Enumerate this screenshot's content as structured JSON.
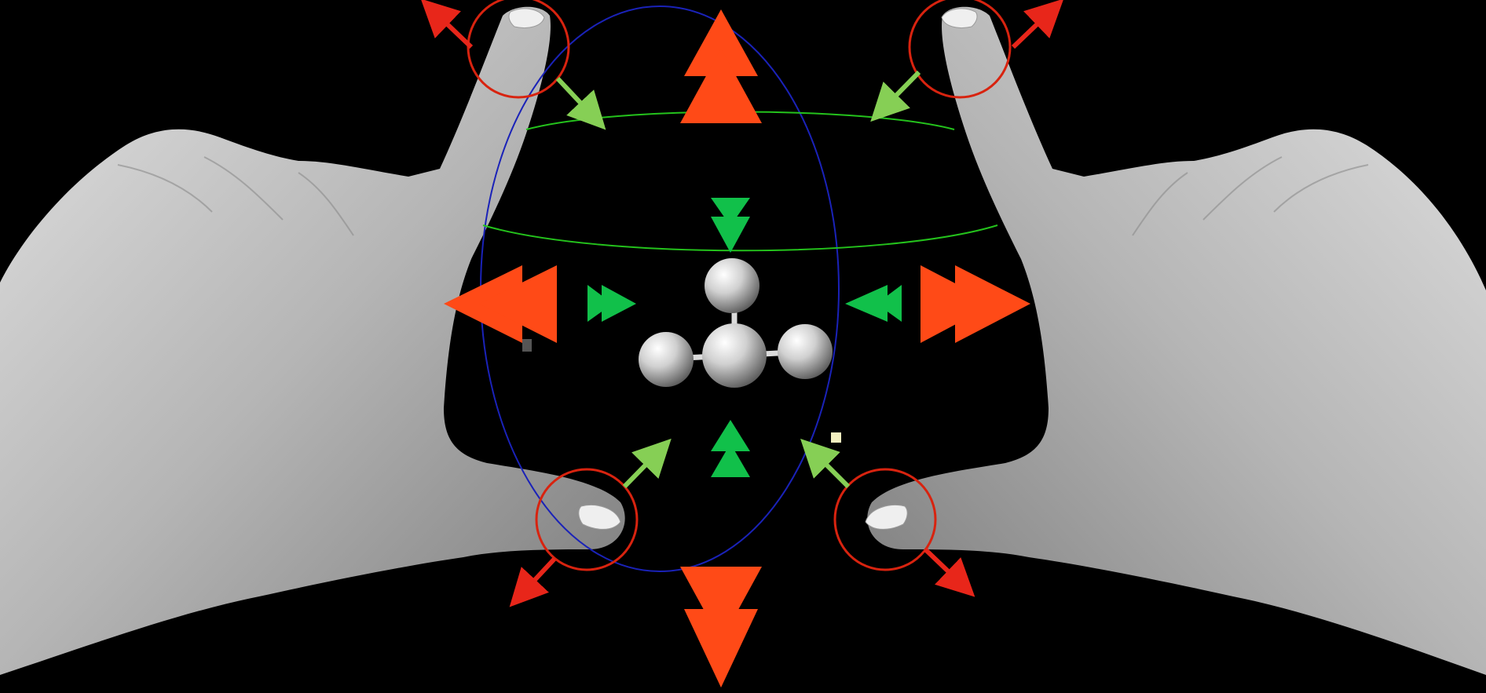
{
  "colors": {
    "background": "#000000",
    "skin_light": "#d6d6d6",
    "skin_mid": "#a9a9a9",
    "skin_dark": "#6a6a6a",
    "expand_arrow": "#ff4a17",
    "shrink_arrow": "#11c04a",
    "pinch_arrow_red": "#e8261a",
    "pinch_arrow_green": "#86cf55",
    "touch_circle": "#d8230f",
    "orbit_vertical": "#1a22b8",
    "orbit_horizontal": "#24c21c",
    "atom": "#cfcfcf",
    "bond": "#dcdcdc"
  },
  "icons": {
    "left_hand": "left-hand-icon",
    "right_hand": "right-hand-icon",
    "molecule": "molecule-icon",
    "expand_up": "double-arrow-up-icon",
    "expand_down": "double-arrow-down-icon",
    "expand_left": "double-arrow-left-icon",
    "expand_right": "double-arrow-right-icon",
    "shrink_down": "double-arrow-down-icon",
    "shrink_up": "double-arrow-up-icon",
    "shrink_right": "double-arrow-right-icon",
    "shrink_left": "double-arrow-left-icon",
    "touch_point": "touch-circle-icon"
  }
}
